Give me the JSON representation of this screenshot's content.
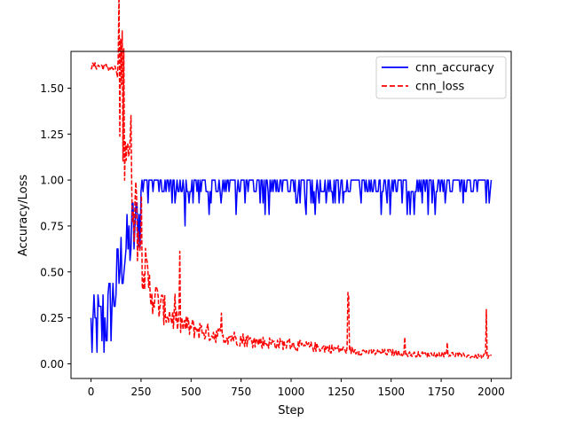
{
  "chart_data": {
    "type": "line",
    "title": "",
    "xlabel": "Step",
    "ylabel": "Accuracy/Loss",
    "xlim": [
      -100,
      2100
    ],
    "ylim": [
      -0.08,
      1.7
    ],
    "x_ticks": [
      0,
      250,
      500,
      750,
      1000,
      1250,
      1500,
      1750,
      2000
    ],
    "y_ticks": [
      0.0,
      0.25,
      0.5,
      0.75,
      1.0,
      1.25,
      1.5
    ],
    "x_tick_labels": [
      "0",
      "250",
      "500",
      "750",
      "1000",
      "1250",
      "1500",
      "1750",
      "2000"
    ],
    "y_tick_labels": [
      "0.00",
      "0.25",
      "0.50",
      "0.75",
      "1.00",
      "1.25",
      "1.50"
    ],
    "grid": false,
    "legend_position": "upper-right",
    "series": [
      {
        "name": "cnn_accuracy",
        "color": "#0000ff",
        "style": "solid",
        "x": [
          0,
          50,
          100,
          150,
          200,
          250,
          300,
          350,
          400,
          450,
          500,
          600,
          700,
          800,
          900,
          1000,
          1100,
          1200,
          1300,
          1400,
          1500,
          1600,
          1700,
          1800,
          1900,
          2000
        ],
        "y": [
          0.16,
          0.2,
          0.3,
          0.55,
          0.68,
          0.82,
          0.88,
          0.9,
          0.92,
          0.93,
          0.94,
          0.95,
          0.95,
          0.96,
          0.96,
          0.97,
          0.97,
          0.97,
          0.97,
          0.97,
          0.98,
          0.98,
          0.98,
          0.98,
          0.98,
          0.98
        ]
      },
      {
        "name": "cnn_loss",
        "color": "#ff0000",
        "style": "dashed",
        "x": [
          0,
          50,
          100,
          125,
          150,
          175,
          200,
          225,
          250,
          275,
          300,
          350,
          400,
          450,
          500,
          600,
          700,
          800,
          900,
          1000,
          1100,
          1200,
          1300,
          1400,
          1500,
          1600,
          1700,
          1800,
          1900,
          2000
        ],
        "y": [
          1.62,
          1.62,
          1.61,
          1.6,
          1.52,
          1.3,
          1.05,
          0.8,
          0.6,
          0.46,
          0.38,
          0.3,
          0.25,
          0.21,
          0.19,
          0.16,
          0.14,
          0.12,
          0.11,
          0.1,
          0.09,
          0.08,
          0.07,
          0.06,
          0.06,
          0.05,
          0.05,
          0.05,
          0.04,
          0.04
        ]
      }
    ]
  }
}
